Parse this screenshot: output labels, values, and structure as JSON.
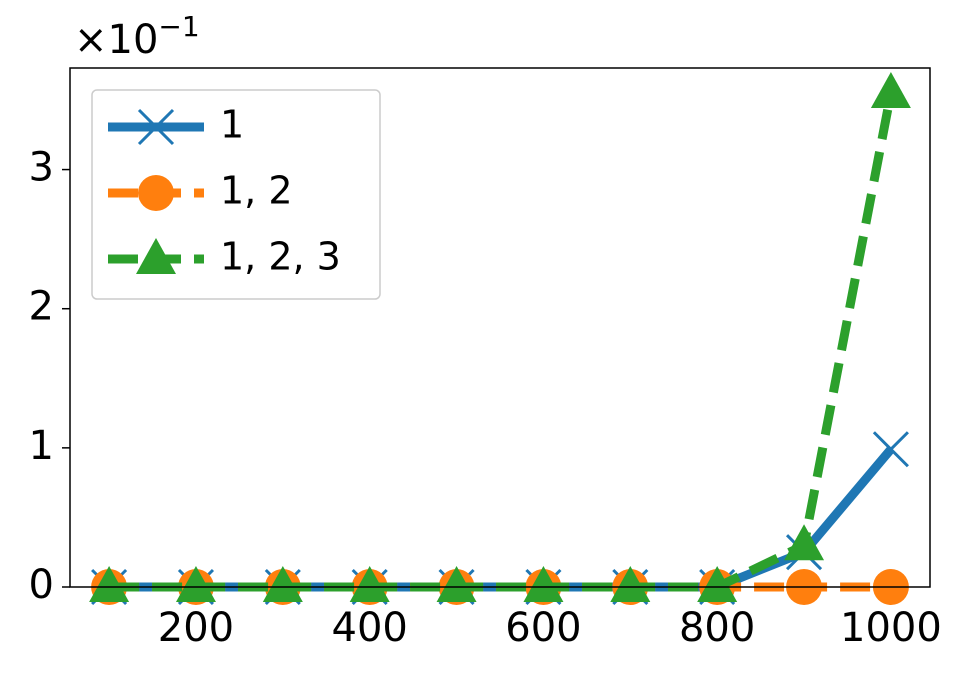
{
  "chart_data": {
    "type": "line",
    "y_scale_base": "×10",
    "y_scale_exponent": "−1",
    "x": [
      100,
      200,
      300,
      400,
      500,
      600,
      700,
      800,
      900,
      1000
    ],
    "series": [
      {
        "name": "1",
        "color": "#1f77b4",
        "marker": "x",
        "dash": "solid",
        "values": [
          0,
          0,
          0,
          0,
          0,
          0,
          0,
          0,
          0.25,
          0.99
        ]
      },
      {
        "name": "1, 2",
        "color": "#ff7f0e",
        "marker": "o",
        "dash": "dashed",
        "values": [
          0,
          0,
          0,
          0,
          0,
          0,
          0,
          0,
          0,
          0
        ]
      },
      {
        "name": "1, 2, 3",
        "color": "#2ca02c",
        "marker": "^",
        "dash": "dashed",
        "values": [
          0,
          0,
          0,
          0,
          0,
          0,
          0,
          0,
          0.3,
          3.55
        ]
      }
    ],
    "xlim": [
      55,
      1045
    ],
    "ylim": [
      0,
      3.73
    ],
    "xticks": [
      200,
      400,
      600,
      800,
      1000
    ],
    "yticks": [
      0,
      1,
      2,
      3
    ],
    "legend": "upper left"
  }
}
